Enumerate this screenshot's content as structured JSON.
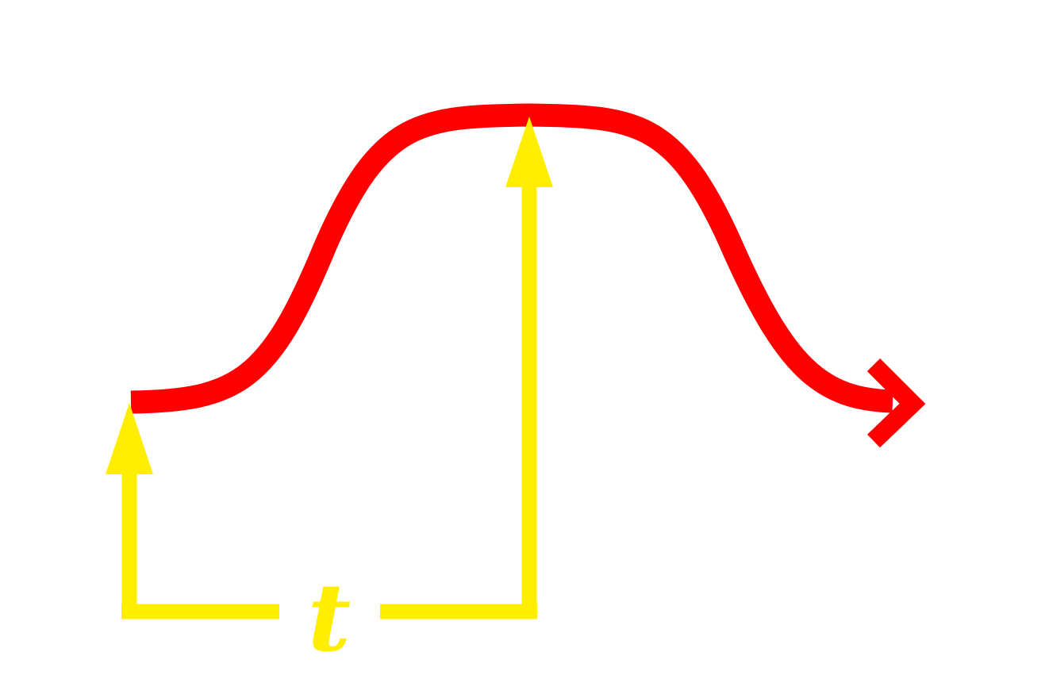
{
  "diagram": {
    "colors": {
      "background": "#ffffff",
      "curve": "#ff0000",
      "markers": "#ffee00"
    },
    "interval_label": "t"
  }
}
